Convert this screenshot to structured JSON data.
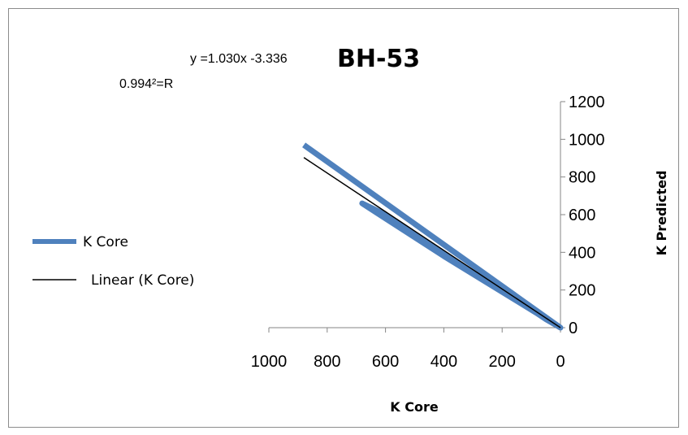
{
  "chart_data": {
    "type": "line",
    "title": "BH-53",
    "xlabel": "K Core",
    "ylabel": "K Predicted",
    "xlim": [
      0,
      1000
    ],
    "ylim": [
      0,
      1200
    ],
    "x_reversed": true,
    "x_ticks": [
      "1000",
      "800",
      "600",
      "400",
      "200",
      "0"
    ],
    "y_ticks": [
      "0",
      "200",
      "400",
      "600",
      "800",
      "1000",
      "1200"
    ],
    "grid": false,
    "legend_position": "left",
    "series": [
      {
        "name": "K Core",
        "color": "#4f81bd",
        "x": [
          0,
          50,
          200,
          320,
          600,
          680,
          600,
          400,
          200,
          100,
          0,
          880
        ],
        "y": [
          0,
          45,
          200,
          310,
          600,
          660,
          580,
          380,
          190,
          95,
          0,
          970
        ]
      },
      {
        "name": "Linear (K Core)",
        "color": "#000000",
        "x": [
          0,
          880
        ],
        "y": [
          0,
          903
        ]
      }
    ],
    "annotations": {
      "equation": "y =1.030x -3.336",
      "r_squared": "0.994²=R"
    }
  }
}
